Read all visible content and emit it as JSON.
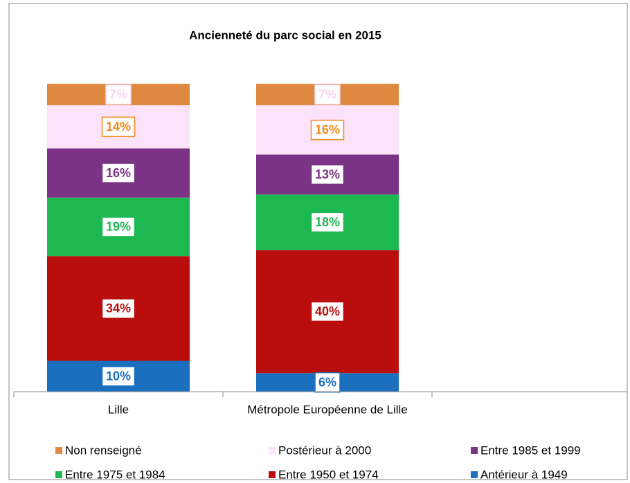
{
  "chart_data": {
    "type": "stacked_bar",
    "title": "Ancienneté du parc social en 2015",
    "categories": [
      "Lille",
      "Métropole Européenne de Lille"
    ],
    "ylim": [
      0,
      100
    ],
    "series": [
      {
        "name": "Antérieur à 1949",
        "color": "#1a6fbf",
        "label_color": "#1a6fbf",
        "values": [
          10,
          6
        ],
        "value_labels": [
          "10%",
          "6%"
        ]
      },
      {
        "name": "Entre 1950 et 1974",
        "color": "#b90d0e",
        "label_color": "#b90d0e",
        "values": [
          34,
          40
        ],
        "value_labels": [
          "34%",
          "40%"
        ]
      },
      {
        "name": "Entre 1975 et 1984",
        "color": "#1eb851",
        "label_color": "#1eb851",
        "values": [
          19,
          18
        ],
        "value_labels": [
          "19%",
          "18%"
        ]
      },
      {
        "name": "Entre 1985 et 1999",
        "color": "#7b3385",
        "label_color": "#7b3385",
        "values": [
          16,
          13
        ],
        "value_labels": [
          "16%",
          "13%"
        ]
      },
      {
        "name": "Postérieur à 2000",
        "color": "#fde2fb",
        "label_color": "#f08a1c",
        "values": [
          14,
          16
        ],
        "value_labels": [
          "14%",
          "16%"
        ]
      },
      {
        "name": "Non renseigné",
        "color": "#df8840",
        "label_color": "#fbd3f5",
        "values": [
          7,
          7
        ],
        "value_labels": [
          "7%",
          "7%"
        ]
      }
    ]
  }
}
